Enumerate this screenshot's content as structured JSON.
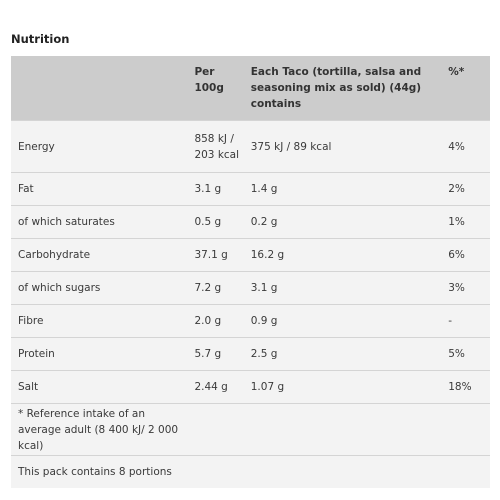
{
  "title": "Nutrition",
  "columns": {
    "nutrient": "",
    "per100g": "Per 100g",
    "per_taco": "Each Taco (tortilla, salsa and seasoning mix as sold) (44g) contains",
    "pct": "%*"
  },
  "rows": [
    {
      "name": "Energy",
      "per100g": "858 kJ / 203 kcal",
      "per_taco": "375 kJ / 89 kcal",
      "pct": "4%"
    },
    {
      "name": "Fat",
      "per100g": "3.1 g",
      "per_taco": "1.4 g",
      "pct": "2%"
    },
    {
      "name": "of which saturates",
      "per100g": "0.5 g",
      "per_taco": "0.2 g",
      "pct": "1%"
    },
    {
      "name": "Carbohydrate",
      "per100g": "37.1 g",
      "per_taco": "16.2 g",
      "pct": "6%"
    },
    {
      "name": "of which sugars",
      "per100g": "7.2 g",
      "per_taco": "3.1 g",
      "pct": "3%"
    },
    {
      "name": "Fibre",
      "per100g": "2.0 g",
      "per_taco": "0.9 g",
      "pct": "-"
    },
    {
      "name": "Protein",
      "per100g": "5.7 g",
      "per_taco": "2.5 g",
      "pct": "5%"
    },
    {
      "name": "Salt",
      "per100g": "2.44 g",
      "per_taco": "1.07 g",
      "pct": "18%"
    }
  ],
  "footnote": "* Reference intake of an average adult (8 400 kJ/ 2 000 kcal)",
  "portions": "This pack contains 8 portions",
  "colors": {
    "header_bg": "#cccccc",
    "body_bg": "#f3f3f3",
    "text": "#3a3a3a"
  }
}
